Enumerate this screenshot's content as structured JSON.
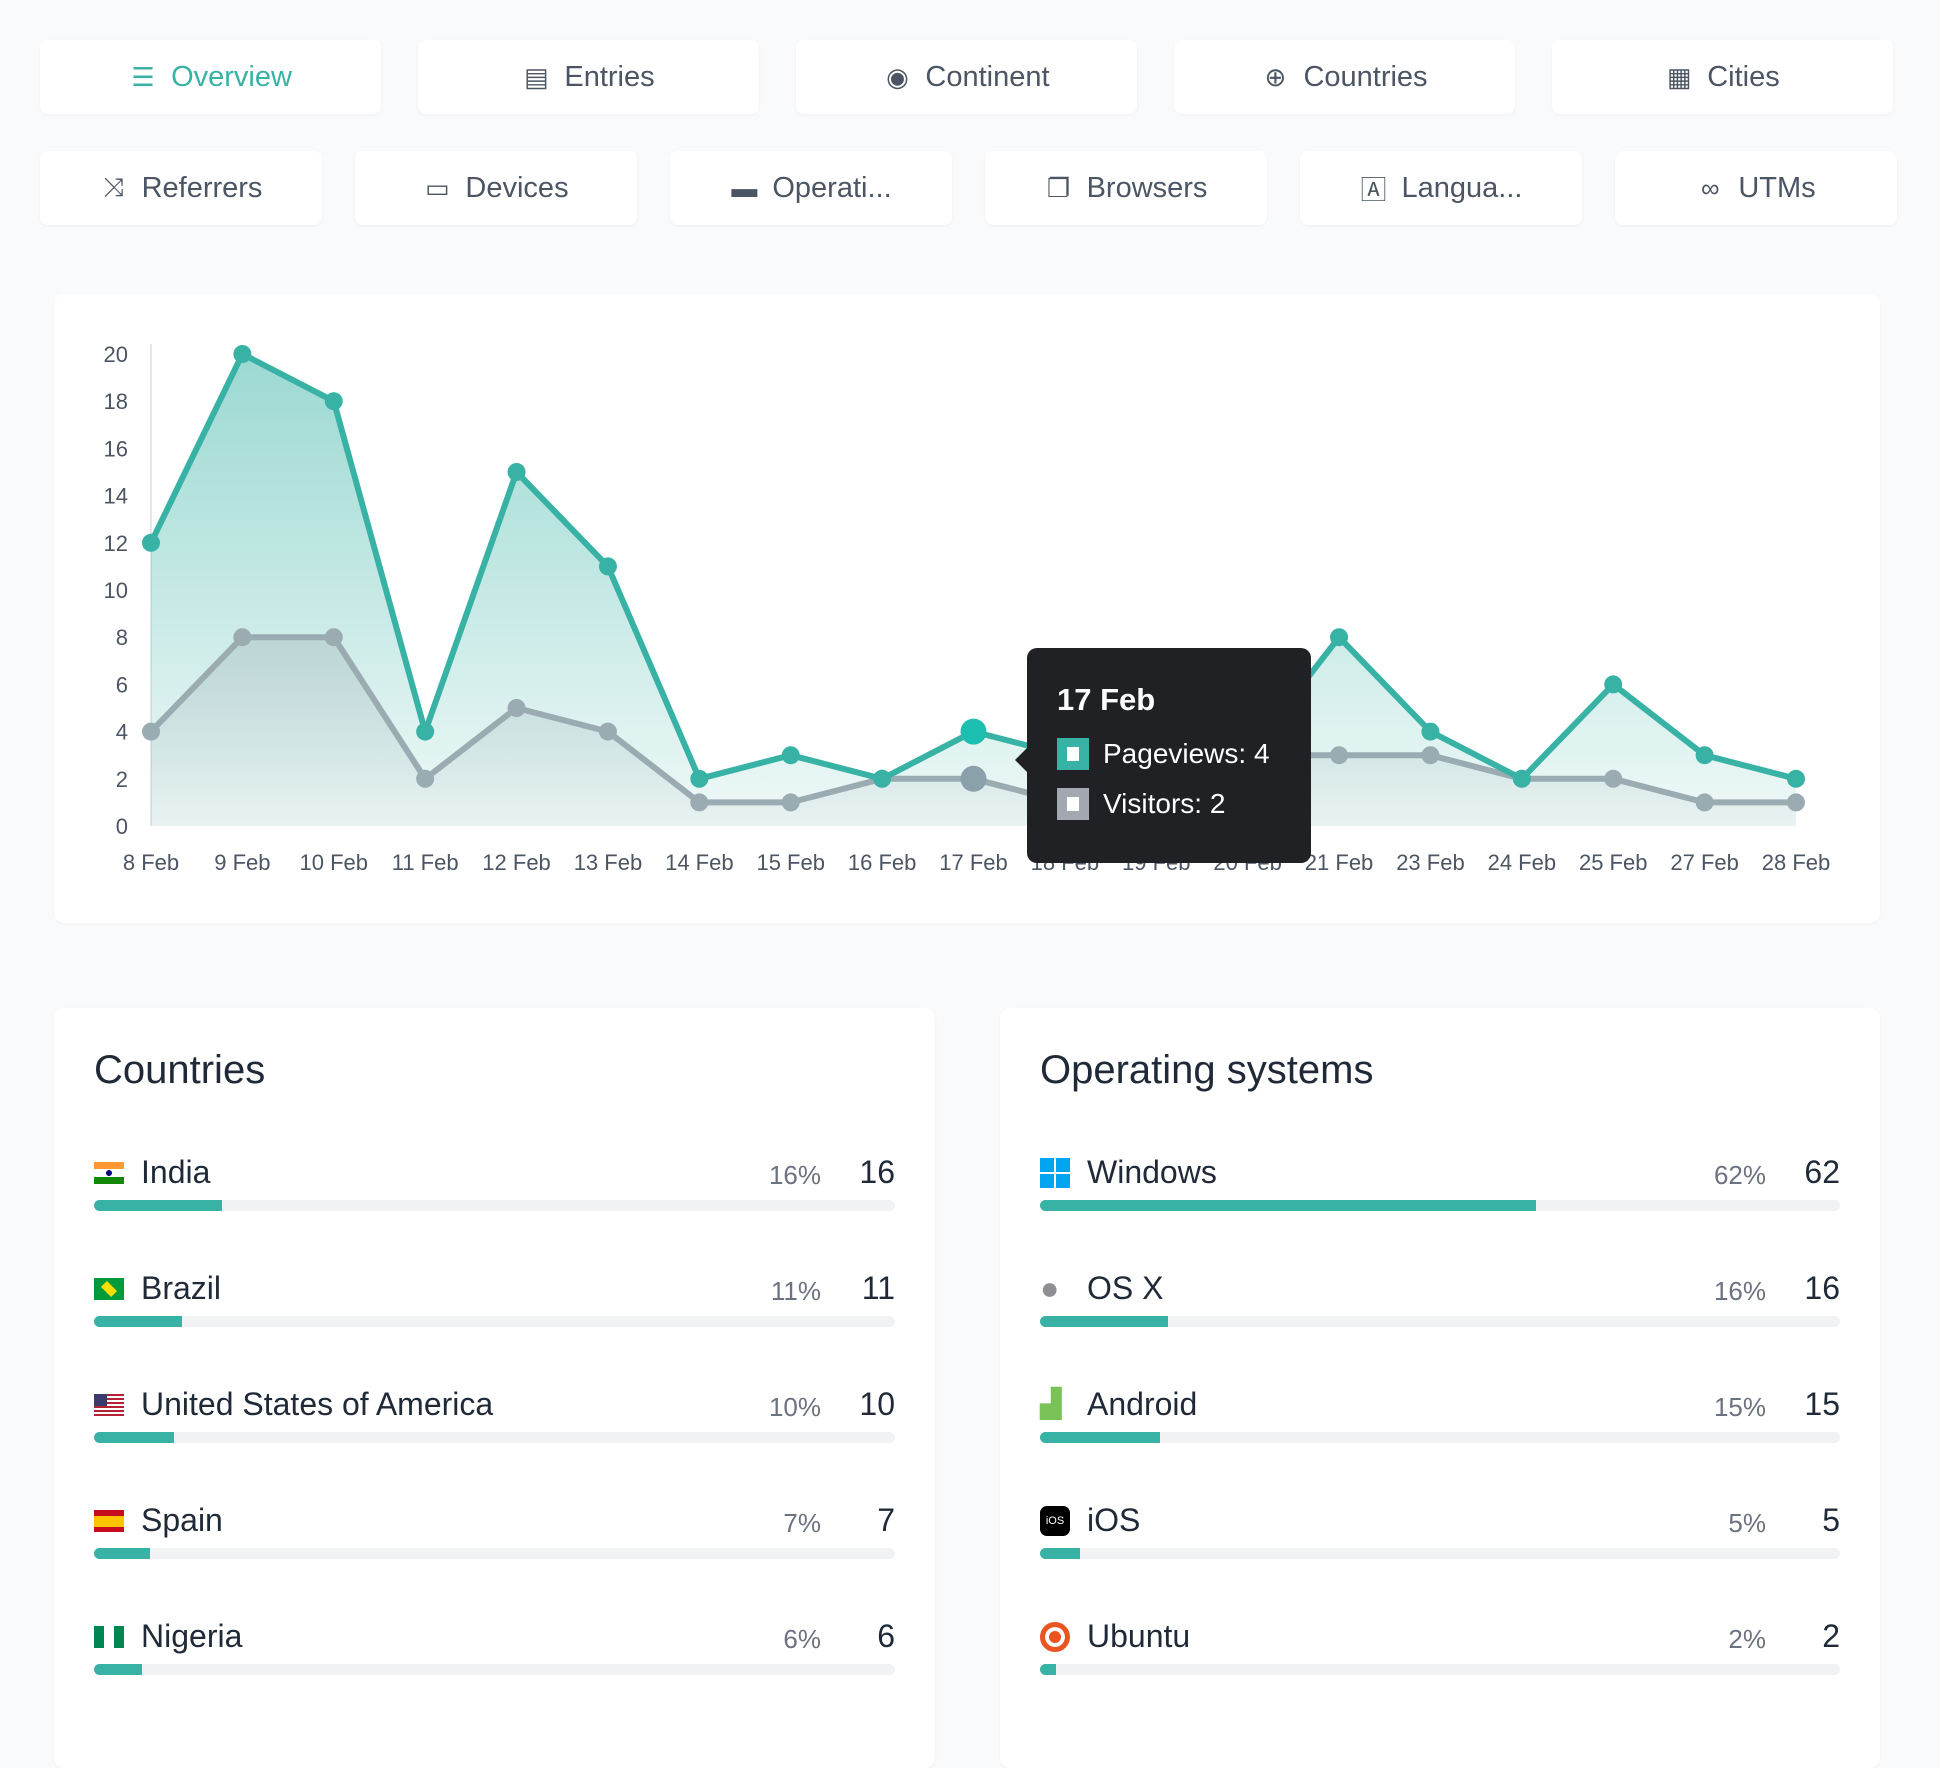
{
  "tabs_row1": [
    {
      "label": "Overview",
      "icon": "list-icon",
      "glyph": "☰",
      "active": true
    },
    {
      "label": "Entries",
      "icon": "bar-chart-icon",
      "glyph": "▤"
    },
    {
      "label": "Continent",
      "icon": "globe-europe-icon",
      "glyph": "◉"
    },
    {
      "label": "Countries",
      "icon": "globe-icon",
      "glyph": "⊕"
    },
    {
      "label": "Cities",
      "icon": "city-icon",
      "glyph": "▦"
    }
  ],
  "tabs_row2": [
    {
      "label": "Referrers",
      "icon": "shuffle-icon",
      "glyph": "⤨"
    },
    {
      "label": "Devices",
      "icon": "laptop-icon",
      "glyph": "▭"
    },
    {
      "label": "Operati...",
      "icon": "server-icon",
      "glyph": "▬"
    },
    {
      "label": "Browsers",
      "icon": "window-icon",
      "glyph": "❐"
    },
    {
      "label": "Langua...",
      "icon": "language-icon",
      "glyph": "🄰"
    },
    {
      "label": "UTMs",
      "icon": "link-icon",
      "glyph": "∞"
    }
  ],
  "chart_data": {
    "type": "area",
    "categories": [
      "8 Feb",
      "9 Feb",
      "10 Feb",
      "11 Feb",
      "12 Feb",
      "13 Feb",
      "14 Feb",
      "15 Feb",
      "16 Feb",
      "17 Feb",
      "18 Feb",
      "19 Feb",
      "20 Feb",
      "21 Feb",
      "23 Feb",
      "24 Feb",
      "25 Feb",
      "27 Feb",
      "28 Feb"
    ],
    "series": [
      {
        "name": "Pageviews",
        "color": "#38b2a5",
        "values": [
          12,
          20,
          18,
          4,
          15,
          11,
          2,
          3,
          2,
          4,
          3,
          2,
          3,
          8,
          4,
          2,
          6,
          3,
          2
        ]
      },
      {
        "name": "Visitors",
        "color": "#9aabb1",
        "values": [
          4,
          8,
          8,
          2,
          5,
          4,
          1,
          1,
          2,
          2,
          1,
          1,
          3,
          3,
          3,
          2,
          2,
          1,
          1
        ]
      }
    ],
    "yticks": [
      0,
      2,
      4,
      6,
      8,
      10,
      12,
      14,
      16,
      18,
      20
    ],
    "ylim": [
      0,
      20
    ],
    "grid": false
  },
  "tooltip": {
    "title": "17 Feb",
    "pageviews": "Pageviews: 4",
    "visitors": "Visitors: 2"
  },
  "countries": {
    "title": "Countries",
    "rows": [
      {
        "label": "India",
        "pct": "16%",
        "value": "16",
        "fill": 16,
        "flag": "in"
      },
      {
        "label": "Brazil",
        "pct": "11%",
        "value": "11",
        "fill": 11,
        "flag": "br"
      },
      {
        "label": "United States of America",
        "pct": "10%",
        "value": "10",
        "fill": 10,
        "flag": "us"
      },
      {
        "label": "Spain",
        "pct": "7%",
        "value": "7",
        "fill": 7,
        "flag": "es"
      },
      {
        "label": "Nigeria",
        "pct": "6%",
        "value": "6",
        "fill": 6,
        "flag": "ng"
      }
    ]
  },
  "os": {
    "title": "Operating systems",
    "rows": [
      {
        "label": "Windows",
        "pct": "62%",
        "value": "62",
        "fill": 62,
        "icon": "windows-icon"
      },
      {
        "label": "OS X",
        "pct": "16%",
        "value": "16",
        "fill": 16,
        "icon": "apple-icon"
      },
      {
        "label": "Android",
        "pct": "15%",
        "value": "15",
        "fill": 15,
        "icon": "android-icon"
      },
      {
        "label": "iOS",
        "pct": "5%",
        "value": "5",
        "fill": 5,
        "icon": "ios-icon",
        "badge": "iOS"
      },
      {
        "label": "Ubuntu",
        "pct": "2%",
        "value": "2",
        "fill": 2,
        "icon": "ubuntu-icon"
      }
    ]
  }
}
